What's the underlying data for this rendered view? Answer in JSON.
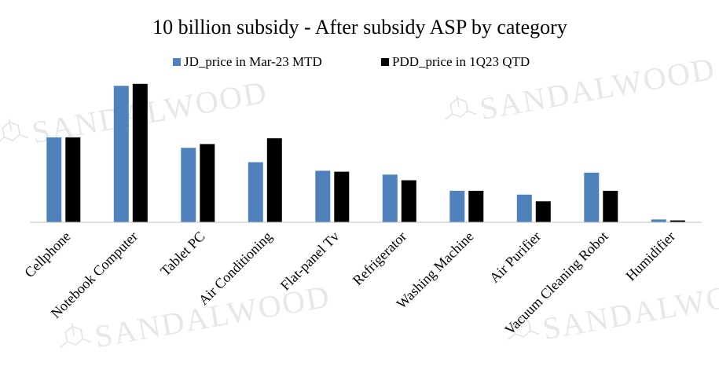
{
  "watermark": "SANDALWOOD",
  "chart_data": {
    "type": "bar",
    "title": "10 billion subsidy - After subsidy ASP by category",
    "xlabel": "",
    "ylabel": "",
    "ylim": [
      0,
      10000
    ],
    "grid": false,
    "legend_position": "top",
    "categories": [
      "Cellphone",
      "Notebook Computer",
      "Tablet PC",
      "Air Conditioning",
      "Flat-panel Tv",
      "Refrigerator",
      "Washing Machine",
      "Air Purifier",
      "Vacuum Cleaning Robot",
      "Humidifier"
    ],
    "series": [
      {
        "name": "JD_price in Mar-23 MTD",
        "color": "#4f81bd",
        "values": [
          4450,
          7150,
          3900,
          3150,
          2700,
          2500,
          1650,
          1450,
          2600,
          150
        ]
      },
      {
        "name": "PDD_price in 1Q23 QTD",
        "color": "#000000",
        "values": [
          4450,
          7250,
          4100,
          4400,
          2650,
          2200,
          1650,
          1100,
          1650,
          100
        ]
      }
    ]
  }
}
